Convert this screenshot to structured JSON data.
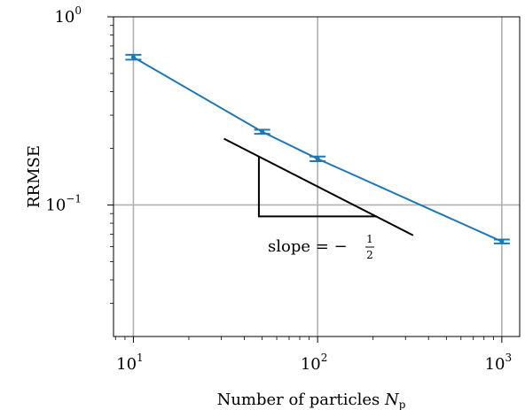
{
  "chart_data": {
    "type": "line",
    "xscale": "log",
    "yscale": "log",
    "xlim": [
      7.8,
      1250
    ],
    "ylim": [
      0.02,
      1.0
    ],
    "grid": true,
    "xlabel_main": "Number of particles ",
    "xlabel_symbol": "N",
    "xlabel_sub": "p",
    "ylabel": "RRMSE",
    "x_ticks": [
      {
        "value": 10,
        "base": "10",
        "exp": "1"
      },
      {
        "value": 100,
        "base": "10",
        "exp": "2"
      },
      {
        "value": 1000,
        "base": "10",
        "exp": "3"
      }
    ],
    "y_ticks": [
      {
        "value": 0.1,
        "base": "10",
        "exp": "−1"
      },
      {
        "value": 1.0,
        "base": "10",
        "exp": "0"
      }
    ],
    "series": [
      {
        "color": "#1f77b4",
        "x": [
          10,
          50,
          100,
          1000
        ],
        "y": [
          0.61,
          0.245,
          0.176,
          0.064
        ],
        "yerr": [
          0.018,
          0.006,
          0.005,
          0.0015
        ]
      }
    ],
    "slope_annotation": {
      "line": {
        "x": [
          31,
          330
        ],
        "y": [
          0.225,
          0.069
        ]
      },
      "triangle": {
        "x": [
          48,
          210
        ],
        "y": [
          0.181,
          0.087
        ]
      },
      "label_prefix": "slope = −",
      "frac_num": "1",
      "frac_den": "2"
    }
  }
}
